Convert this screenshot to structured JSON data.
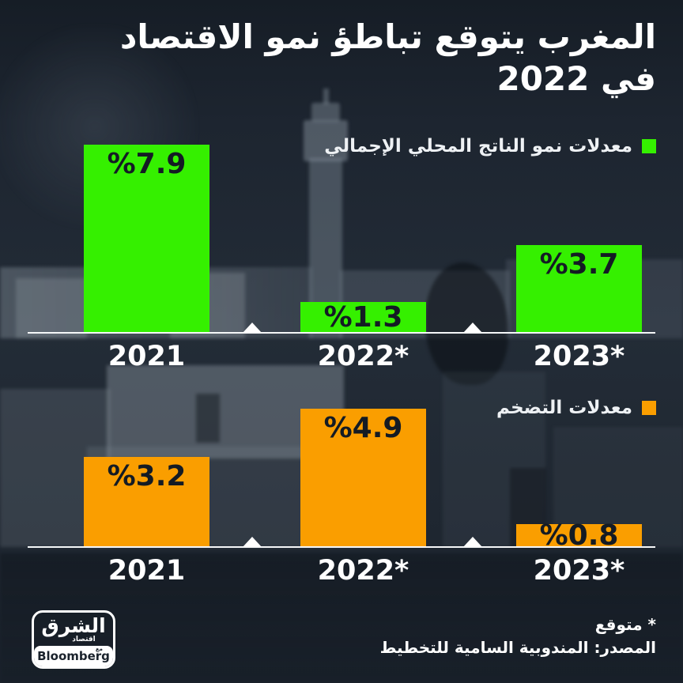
{
  "title": {
    "line1": "المغرب يتوقع تباطؤ نمو الاقتصاد",
    "line2": "في 2022"
  },
  "chart_data": [
    {
      "type": "bar",
      "legend": "معدلات نمو الناتج المحلي الإجمالي",
      "color": "#35f000",
      "categories": [
        "2021",
        "2022*",
        "2023*"
      ],
      "values": [
        7.9,
        1.3,
        3.7
      ],
      "bar_labels": [
        "%7.9",
        "%1.3",
        "%3.7"
      ],
      "ylim": [
        0,
        7.9
      ],
      "unit": "percent",
      "legend_position": "top-right",
      "grid": false
    },
    {
      "type": "bar",
      "legend": "معدلات التضخم",
      "color": "#fa9e00",
      "categories": [
        "2021",
        "2022*",
        "2023*"
      ],
      "values": [
        3.2,
        4.9,
        0.8
      ],
      "bar_labels": [
        "%3.2",
        "%4.9",
        "%0.8"
      ],
      "ylim": [
        0,
        4.9
      ],
      "unit": "percent",
      "legend_position": "top-right",
      "grid": false
    }
  ],
  "footer": {
    "note": "* متوقع",
    "source": "المصدر: المندوبية السامية للتخطيط",
    "logo": {
      "wordmark": "الشرق",
      "sub": "اقتصاد",
      "partner": "Bloomberg",
      "partner_small": "مع"
    }
  },
  "colors": {
    "background": "#1d2530",
    "gdp_green": "#35f000",
    "inflation_orange": "#fa9e00",
    "bar_label_dark": "#141b24",
    "axis_white": "#f5f7f8",
    "text_white": "#ffffff"
  }
}
